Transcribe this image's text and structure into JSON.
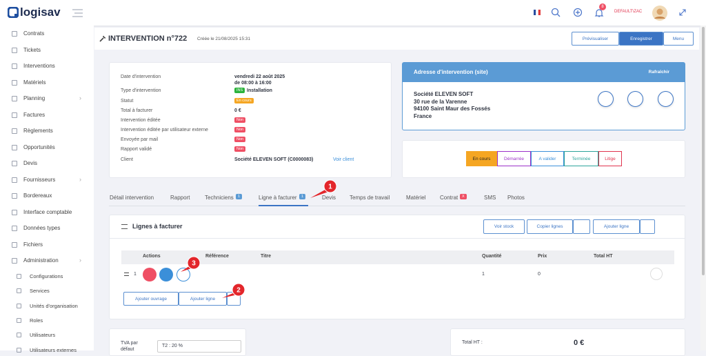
{
  "header": {
    "logo": "logisav",
    "notifications": "8",
    "user": "DEFAULT\\ZAC"
  },
  "sidebar": {
    "items": [
      {
        "label": "Contrats"
      },
      {
        "label": "Tickets"
      },
      {
        "label": "Interventions"
      },
      {
        "label": "Matériels"
      },
      {
        "label": "Planning",
        "chevron": true
      },
      {
        "label": "Factures"
      },
      {
        "label": "Règlements"
      },
      {
        "label": "Opportunités"
      },
      {
        "label": "Devis"
      },
      {
        "label": "Fournisseurs",
        "chevron": true
      },
      {
        "label": "Bordereaux"
      },
      {
        "label": "Interface comptable"
      },
      {
        "label": "Données types"
      },
      {
        "label": "Fichiers"
      },
      {
        "label": "Administration",
        "chevron": true
      }
    ],
    "subitems": [
      "Configurations",
      "Services",
      "Unités d'organisation",
      "Roles",
      "Utilisateurs",
      "Utilisateurs externes"
    ]
  },
  "page": {
    "title": "INTERVENTION n°722",
    "created": "Créée le 21/08/2025 15:31",
    "buttons": [
      "Prévisualiser",
      "Enregistrer",
      "Menu"
    ]
  },
  "details": {
    "rows": [
      {
        "label": "Date d'intervention",
        "value": "vendredi 22 août 2025",
        "value2": "de 08:00 à 16:00"
      },
      {
        "label": "Type d'intervention",
        "badge": "INS",
        "badge_color": "#2bb33c",
        "value": "Installation"
      },
      {
        "label": "Statut",
        "badge": "En cours",
        "badge_color": "#f5a623"
      },
      {
        "label": "Total à facturer",
        "value": "0 €"
      },
      {
        "label": "Intervention éditée",
        "badge": "Non",
        "badge_color": "#ef4f64"
      },
      {
        "label": "Intervention éditée par utilisateur externe",
        "badge": "Non",
        "badge_color": "#ef4f64"
      },
      {
        "label": "Envoyée par mail",
        "badge": "Non",
        "badge_color": "#ef4f64"
      },
      {
        "label": "Rapport validé",
        "badge": "Non",
        "badge_color": "#ef4f64"
      },
      {
        "label": "Client",
        "value": "Société ELEVEN SOFT (C0000083)",
        "link": "Voir client"
      }
    ]
  },
  "address": {
    "title": "Adresse d'intervention (site)",
    "refresh": "Rafraîchir",
    "lines": [
      "Société ELEVEN SOFT",
      "30 rue de la Varenne",
      "94100 Saint Maur des Fossés",
      "France"
    ]
  },
  "statuses": [
    {
      "label": "En cours",
      "color": "#f5a623",
      "active": true
    },
    {
      "label": "Démarrée",
      "color": "#9b30c8"
    },
    {
      "label": "A valider",
      "color": "#3b8fd9"
    },
    {
      "label": "Terminée",
      "color": "#2ba39a"
    },
    {
      "label": "Litige",
      "color": "#e0334d"
    }
  ],
  "tabs": [
    {
      "label": "Détail intervention"
    },
    {
      "label": "Rapport"
    },
    {
      "label": "Techniciens",
      "badge": "1",
      "badge_color": "#5b9bd5"
    },
    {
      "label": "Ligne à facturer",
      "badge": "1",
      "badge_color": "#5b9bd5",
      "active": true
    },
    {
      "label": "Devis"
    },
    {
      "label": "Temps de travail"
    },
    {
      "label": "Matériel"
    },
    {
      "label": "Contrat",
      "badge": "X",
      "badge_color": "#ef4f64"
    },
    {
      "label": "SMS"
    },
    {
      "label": "Photos"
    }
  ],
  "lines_card": {
    "title": "Lignes à facturer",
    "buttons": [
      "Voir stock",
      "Copier lignes",
      "Ajouter ligne"
    ],
    "headers": [
      "Actions",
      "Référence",
      "Titre",
      "Quantité",
      "Prix",
      "Total HT"
    ],
    "rows": [
      {
        "index": "1",
        "quantity": "1",
        "price": "0"
      }
    ],
    "footer_buttons": [
      "Ajouter ouvrage",
      "Ajouter ligne"
    ]
  },
  "annotations": [
    "1",
    "2",
    "3"
  ],
  "bottom": {
    "tva_label": "TVA par défaut",
    "tva_value": "T2 : 20 %",
    "total_label": "Total HT :",
    "total_value": "0 €"
  }
}
